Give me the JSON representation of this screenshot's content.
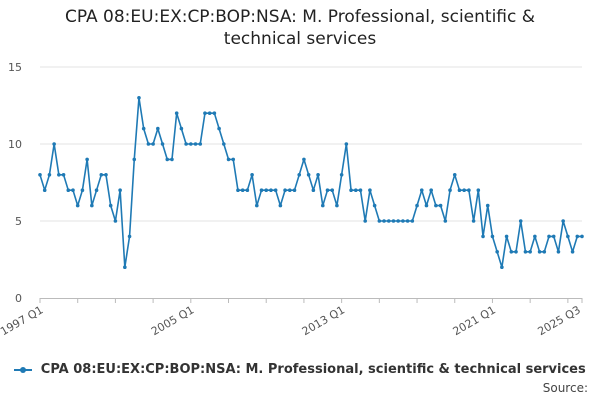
{
  "chart_data": {
    "type": "line",
    "title_line1": "CPA 08:EU:EX:CP:BOP:NSA: M. Professional, scientific &",
    "title_line2": "technical services",
    "ylim": [
      0,
      15
    ],
    "yticks": [
      "0",
      "5",
      "10",
      "15"
    ],
    "xticks": [
      {
        "label": "1997 Q1",
        "index": 0
      },
      {
        "label": "2005 Q1",
        "index": 32
      },
      {
        "label": "2013 Q1",
        "index": 64
      },
      {
        "label": "2021 Q1",
        "index": 96
      },
      {
        "label": "2025 Q3",
        "index": 114
      }
    ],
    "series": [
      {
        "name": "CPA 08:EU:EX:CP:BOP:NSA: M. Professional, scientific & technical services",
        "color": "#1f7ab5",
        "values": [
          8,
          7,
          8,
          10,
          8,
          8,
          7,
          7,
          6,
          7,
          9,
          6,
          7,
          8,
          8,
          6,
          5,
          7,
          2,
          4,
          9,
          13,
          11,
          10,
          10,
          11,
          10,
          9,
          9,
          12,
          11,
          10,
          10,
          10,
          10,
          12,
          12,
          12,
          11,
          10,
          9,
          9,
          7,
          7,
          7,
          8,
          6,
          7,
          7,
          7,
          7,
          6,
          7,
          7,
          7,
          8,
          9,
          8,
          7,
          8,
          6,
          7,
          7,
          6,
          8,
          10,
          7,
          7,
          7,
          5,
          7,
          6,
          5,
          5,
          5,
          5,
          5,
          5,
          5,
          5,
          6,
          7,
          6,
          7,
          6,
          6,
          5,
          7,
          8,
          7,
          7,
          7,
          5,
          7,
          4,
          6,
          4,
          3,
          2,
          4,
          3,
          3,
          5,
          3,
          3,
          4,
          3,
          3,
          4,
          4,
          3,
          5,
          4,
          3,
          4,
          4
        ]
      }
    ]
  },
  "source_label": "Source:"
}
